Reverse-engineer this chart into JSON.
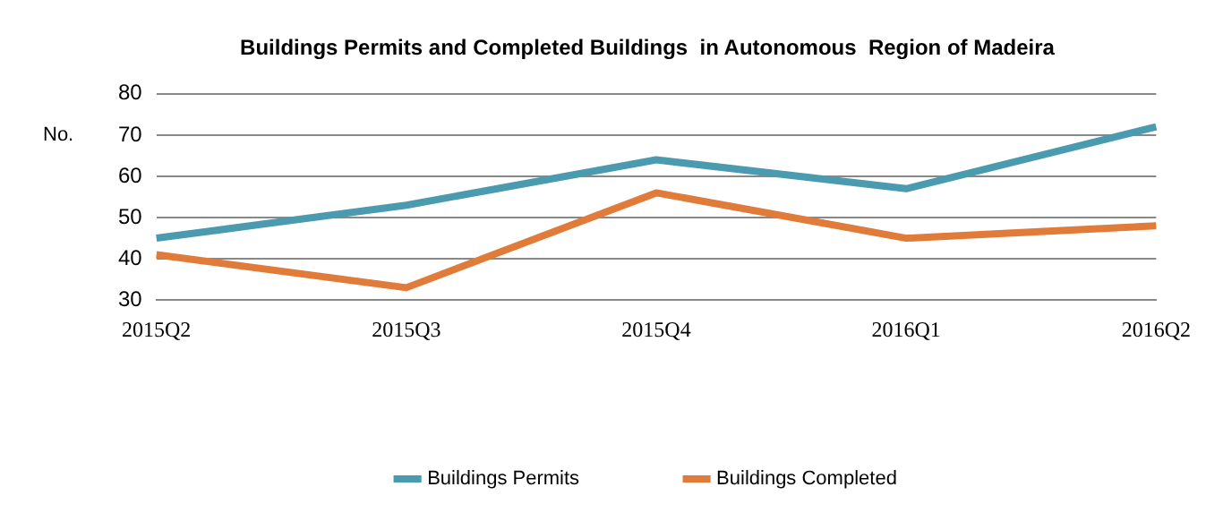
{
  "chart_data": {
    "type": "line",
    "title": "Buildings Permits and Completed Buildings  in Autonomous  Region of Madeira",
    "ylabel": "No.",
    "categories": [
      "2015Q2",
      "2015Q3",
      "2015Q4",
      "2016Q1",
      "2016Q2"
    ],
    "series": [
      {
        "name": "Buildings Permits",
        "color": "#4a9bb0",
        "values": [
          45,
          53,
          64,
          57,
          72
        ]
      },
      {
        "name": "Buildings Completed",
        "color": "#e07b39",
        "values": [
          41,
          33,
          56,
          45,
          48
        ]
      }
    ],
    "ylim": [
      30,
      80
    ],
    "yticks": [
      30,
      40,
      50,
      60,
      70,
      80
    ],
    "grid": "y",
    "legend": "bottom",
    "marker": "none",
    "line_style": "solid"
  }
}
